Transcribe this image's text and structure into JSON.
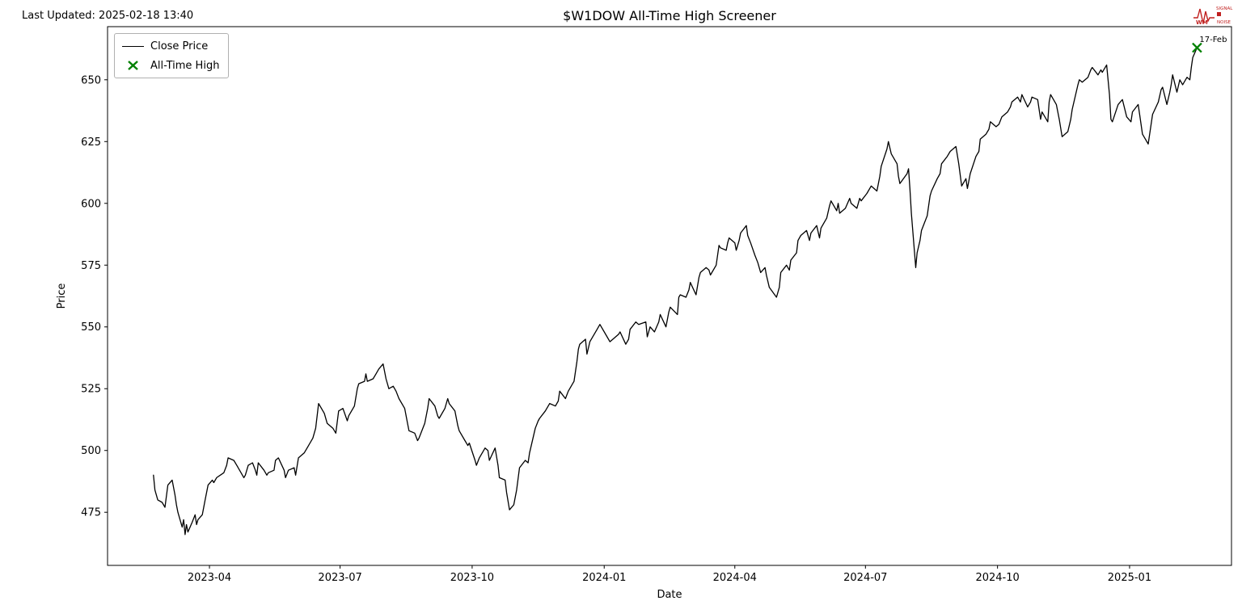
{
  "header": {
    "last_updated": "Last Updated: 2025-02-18 13:40",
    "title": "$W1DOW All-Time High Screener"
  },
  "logo": {
    "letters": "WM",
    "line1": "SIGNAL",
    "line2": "NOISE",
    "color": "#c0201f"
  },
  "legend": {
    "items": [
      {
        "label": "Close Price",
        "type": "line",
        "color": "#000000"
      },
      {
        "label": "All-Time High",
        "type": "x-marker",
        "color": "#008000"
      }
    ]
  },
  "chart_data": {
    "type": "line",
    "title": "$W1DOW All-Time High Screener",
    "xlabel": "Date",
    "ylabel": "Price",
    "series_name": "Close Price",
    "line_color": "#000000",
    "marker_color": "#008000",
    "grid": false,
    "legend_position": "upper left",
    "ylim": [
      453.5,
      671.5
    ],
    "xlim": [
      "2023-01-20",
      "2025-03-13"
    ],
    "yticks": [
      475,
      500,
      525,
      550,
      575,
      600,
      625,
      650
    ],
    "xticks": [
      {
        "label": "2023-04",
        "date": "2023-04-01"
      },
      {
        "label": "2023-07",
        "date": "2023-07-01"
      },
      {
        "label": "2023-10",
        "date": "2023-10-01"
      },
      {
        "label": "2024-01",
        "date": "2024-01-01"
      },
      {
        "label": "2024-04",
        "date": "2024-04-01"
      },
      {
        "label": "2024-07",
        "date": "2024-07-01"
      },
      {
        "label": "2024-10",
        "date": "2024-10-01"
      },
      {
        "label": "2025-01",
        "date": "2025-01-01"
      }
    ],
    "all_time_high": {
      "label": "17-Feb",
      "date": "2025-02-17",
      "value": 663
    },
    "points": [
      [
        "2023-02-21",
        490
      ],
      [
        "2023-02-22",
        484
      ],
      [
        "2023-02-24",
        480
      ],
      [
        "2023-02-27",
        479
      ],
      [
        "2023-03-01",
        477
      ],
      [
        "2023-03-03",
        486
      ],
      [
        "2023-03-06",
        488
      ],
      [
        "2023-03-08",
        482
      ],
      [
        "2023-03-09",
        478
      ],
      [
        "2023-03-10",
        475
      ],
      [
        "2023-03-13",
        469
      ],
      [
        "2023-03-14",
        472
      ],
      [
        "2023-03-15",
        466
      ],
      [
        "2023-03-16",
        470
      ],
      [
        "2023-03-17",
        467
      ],
      [
        "2023-03-20",
        471
      ],
      [
        "2023-03-22",
        474
      ],
      [
        "2023-03-23",
        470
      ],
      [
        "2023-03-24",
        472
      ],
      [
        "2023-03-27",
        474
      ],
      [
        "2023-03-29",
        480
      ],
      [
        "2023-03-31",
        486
      ],
      [
        "2023-04-03",
        488
      ],
      [
        "2023-04-04",
        487
      ],
      [
        "2023-04-06",
        489
      ],
      [
        "2023-04-11",
        491
      ],
      [
        "2023-04-13",
        494
      ],
      [
        "2023-04-14",
        497
      ],
      [
        "2023-04-18",
        496
      ],
      [
        "2023-04-20",
        494
      ],
      [
        "2023-04-25",
        489
      ],
      [
        "2023-04-26",
        490
      ],
      [
        "2023-04-28",
        494
      ],
      [
        "2023-05-01",
        495
      ],
      [
        "2023-05-03",
        492
      ],
      [
        "2023-05-04",
        490
      ],
      [
        "2023-05-05",
        495
      ],
      [
        "2023-05-09",
        492
      ],
      [
        "2023-05-11",
        490
      ],
      [
        "2023-05-12",
        491
      ],
      [
        "2023-05-16",
        492
      ],
      [
        "2023-05-17",
        496
      ],
      [
        "2023-05-19",
        497
      ],
      [
        "2023-05-23",
        492
      ],
      [
        "2023-05-24",
        489
      ],
      [
        "2023-05-26",
        492
      ],
      [
        "2023-05-30",
        493
      ],
      [
        "2023-05-31",
        490
      ],
      [
        "2023-06-02",
        497
      ],
      [
        "2023-06-06",
        499
      ],
      [
        "2023-06-08",
        501
      ],
      [
        "2023-06-12",
        505
      ],
      [
        "2023-06-14",
        509
      ],
      [
        "2023-06-15",
        514
      ],
      [
        "2023-06-16",
        519
      ],
      [
        "2023-06-20",
        515
      ],
      [
        "2023-06-22",
        511
      ],
      [
        "2023-06-26",
        509
      ],
      [
        "2023-06-28",
        507
      ],
      [
        "2023-06-30",
        516
      ],
      [
        "2023-07-03",
        517
      ],
      [
        "2023-07-06",
        512
      ],
      [
        "2023-07-07",
        514
      ],
      [
        "2023-07-11",
        518
      ],
      [
        "2023-07-13",
        525
      ],
      [
        "2023-07-14",
        527
      ],
      [
        "2023-07-18",
        528
      ],
      [
        "2023-07-19",
        531
      ],
      [
        "2023-07-20",
        528
      ],
      [
        "2023-07-24",
        529
      ],
      [
        "2023-07-26",
        531
      ],
      [
        "2023-07-28",
        533
      ],
      [
        "2023-07-31",
        535
      ],
      [
        "2023-08-02",
        529
      ],
      [
        "2023-08-04",
        525
      ],
      [
        "2023-08-07",
        526
      ],
      [
        "2023-08-09",
        524
      ],
      [
        "2023-08-11",
        521
      ],
      [
        "2023-08-15",
        517
      ],
      [
        "2023-08-17",
        511
      ],
      [
        "2023-08-18",
        508
      ],
      [
        "2023-08-22",
        507
      ],
      [
        "2023-08-24",
        504
      ],
      [
        "2023-08-25",
        505
      ],
      [
        "2023-08-29",
        511
      ],
      [
        "2023-08-31",
        517
      ],
      [
        "2023-09-01",
        521
      ],
      [
        "2023-09-05",
        518
      ],
      [
        "2023-09-07",
        514
      ],
      [
        "2023-09-08",
        513
      ],
      [
        "2023-09-12",
        517
      ],
      [
        "2023-09-14",
        521
      ],
      [
        "2023-09-15",
        519
      ],
      [
        "2023-09-19",
        516
      ],
      [
        "2023-09-21",
        510
      ],
      [
        "2023-09-22",
        508
      ],
      [
        "2023-09-26",
        504
      ],
      [
        "2023-09-28",
        502
      ],
      [
        "2023-09-29",
        503
      ],
      [
        "2023-10-03",
        496
      ],
      [
        "2023-10-04",
        494
      ],
      [
        "2023-10-06",
        497
      ],
      [
        "2023-10-10",
        501
      ],
      [
        "2023-10-12",
        500
      ],
      [
        "2023-10-13",
        496
      ],
      [
        "2023-10-17",
        501
      ],
      [
        "2023-10-19",
        494
      ],
      [
        "2023-10-20",
        489
      ],
      [
        "2023-10-24",
        488
      ],
      [
        "2023-10-25",
        483
      ],
      [
        "2023-10-27",
        476
      ],
      [
        "2023-10-30",
        478
      ],
      [
        "2023-11-01",
        484
      ],
      [
        "2023-11-03",
        493
      ],
      [
        "2023-11-07",
        496
      ],
      [
        "2023-11-09",
        495
      ],
      [
        "2023-11-10",
        499
      ],
      [
        "2023-11-14",
        509
      ],
      [
        "2023-11-16",
        512
      ],
      [
        "2023-11-17",
        513
      ],
      [
        "2023-11-21",
        516
      ],
      [
        "2023-11-24",
        519
      ],
      [
        "2023-11-28",
        518
      ],
      [
        "2023-11-30",
        520
      ],
      [
        "2023-12-01",
        524
      ],
      [
        "2023-12-05",
        521
      ],
      [
        "2023-12-07",
        524
      ],
      [
        "2023-12-11",
        528
      ],
      [
        "2023-12-13",
        536
      ],
      [
        "2023-12-14",
        541
      ],
      [
        "2023-12-15",
        543
      ],
      [
        "2023-12-19",
        545
      ],
      [
        "2023-12-20",
        539
      ],
      [
        "2023-12-22",
        544
      ],
      [
        "2023-12-27",
        549
      ],
      [
        "2023-12-29",
        551
      ],
      [
        "2024-01-03",
        546
      ],
      [
        "2024-01-05",
        544
      ],
      [
        "2024-01-09",
        546
      ],
      [
        "2024-01-11",
        547
      ],
      [
        "2024-01-12",
        548
      ],
      [
        "2024-01-16",
        543
      ],
      [
        "2024-01-18",
        545
      ],
      [
        "2024-01-19",
        549
      ],
      [
        "2024-01-23",
        552
      ],
      [
        "2024-01-25",
        551
      ],
      [
        "2024-01-30",
        552
      ],
      [
        "2024-01-31",
        546
      ],
      [
        "2024-02-02",
        550
      ],
      [
        "2024-02-05",
        548
      ],
      [
        "2024-02-08",
        552
      ],
      [
        "2024-02-09",
        555
      ],
      [
        "2024-02-13",
        550
      ],
      [
        "2024-02-15",
        556
      ],
      [
        "2024-02-16",
        558
      ],
      [
        "2024-02-21",
        555
      ],
      [
        "2024-02-22",
        562
      ],
      [
        "2024-02-23",
        563
      ],
      [
        "2024-02-27",
        562
      ],
      [
        "2024-02-29",
        565
      ],
      [
        "2024-03-01",
        568
      ],
      [
        "2024-03-05",
        563
      ],
      [
        "2024-03-07",
        570
      ],
      [
        "2024-03-08",
        572
      ],
      [
        "2024-03-12",
        574
      ],
      [
        "2024-03-14",
        573
      ],
      [
        "2024-03-15",
        571
      ],
      [
        "2024-03-19",
        575
      ],
      [
        "2024-03-21",
        583
      ],
      [
        "2024-03-22",
        582
      ],
      [
        "2024-03-26",
        581
      ],
      [
        "2024-03-27",
        584
      ],
      [
        "2024-03-28",
        586
      ],
      [
        "2024-04-01",
        584
      ],
      [
        "2024-04-02",
        581
      ],
      [
        "2024-04-04",
        585
      ],
      [
        "2024-04-05",
        588
      ],
      [
        "2024-04-09",
        591
      ],
      [
        "2024-04-10",
        587
      ],
      [
        "2024-04-12",
        584
      ],
      [
        "2024-04-15",
        579
      ],
      [
        "2024-04-17",
        576
      ],
      [
        "2024-04-19",
        572
      ],
      [
        "2024-04-22",
        574
      ],
      [
        "2024-04-23",
        571
      ],
      [
        "2024-04-25",
        566
      ],
      [
        "2024-04-30",
        562
      ],
      [
        "2024-05-02",
        566
      ],
      [
        "2024-05-03",
        572
      ],
      [
        "2024-05-07",
        575
      ],
      [
        "2024-05-09",
        573
      ],
      [
        "2024-05-10",
        577
      ],
      [
        "2024-05-14",
        580
      ],
      [
        "2024-05-15",
        585
      ],
      [
        "2024-05-17",
        587
      ],
      [
        "2024-05-21",
        589
      ],
      [
        "2024-05-23",
        585
      ],
      [
        "2024-05-24",
        588
      ],
      [
        "2024-05-28",
        591
      ],
      [
        "2024-05-30",
        586
      ],
      [
        "2024-05-31",
        590
      ],
      [
        "2024-06-04",
        594
      ],
      [
        "2024-06-06",
        599
      ],
      [
        "2024-06-07",
        601
      ],
      [
        "2024-06-11",
        597
      ],
      [
        "2024-06-12",
        600
      ],
      [
        "2024-06-13",
        596
      ],
      [
        "2024-06-17",
        598
      ],
      [
        "2024-06-20",
        602
      ],
      [
        "2024-06-21",
        600
      ],
      [
        "2024-06-25",
        598
      ],
      [
        "2024-06-27",
        602
      ],
      [
        "2024-06-28",
        601
      ],
      [
        "2024-07-02",
        604
      ],
      [
        "2024-07-05",
        607
      ],
      [
        "2024-07-09",
        605
      ],
      [
        "2024-07-11",
        611
      ],
      [
        "2024-07-12",
        615
      ],
      [
        "2024-07-16",
        622
      ],
      [
        "2024-07-17",
        625
      ],
      [
        "2024-07-19",
        620
      ],
      [
        "2024-07-23",
        616
      ],
      [
        "2024-07-24",
        611
      ],
      [
        "2024-07-25",
        608
      ],
      [
        "2024-07-30",
        612
      ],
      [
        "2024-07-31",
        614
      ],
      [
        "2024-08-01",
        606
      ],
      [
        "2024-08-02",
        596
      ],
      [
        "2024-08-05",
        574
      ],
      [
        "2024-08-06",
        580
      ],
      [
        "2024-08-08",
        585
      ],
      [
        "2024-08-09",
        589
      ],
      [
        "2024-08-13",
        595
      ],
      [
        "2024-08-15",
        603
      ],
      [
        "2024-08-16",
        605
      ],
      [
        "2024-08-20",
        610
      ],
      [
        "2024-08-22",
        612
      ],
      [
        "2024-08-23",
        616
      ],
      [
        "2024-08-27",
        619
      ],
      [
        "2024-08-29",
        621
      ],
      [
        "2024-09-02",
        623
      ],
      [
        "2024-09-04",
        616
      ],
      [
        "2024-09-06",
        607
      ],
      [
        "2024-09-09",
        610
      ],
      [
        "2024-09-10",
        606
      ],
      [
        "2024-09-12",
        612
      ],
      [
        "2024-09-16",
        619
      ],
      [
        "2024-09-18",
        621
      ],
      [
        "2024-09-19",
        626
      ],
      [
        "2024-09-23",
        628
      ],
      [
        "2024-09-25",
        630
      ],
      [
        "2024-09-26",
        633
      ],
      [
        "2024-09-30",
        631
      ],
      [
        "2024-10-02",
        632
      ],
      [
        "2024-10-04",
        635
      ],
      [
        "2024-10-08",
        637
      ],
      [
        "2024-10-10",
        639
      ],
      [
        "2024-10-11",
        641
      ],
      [
        "2024-10-15",
        643
      ],
      [
        "2024-10-17",
        641
      ],
      [
        "2024-10-18",
        644
      ],
      [
        "2024-10-22",
        639
      ],
      [
        "2024-10-24",
        641
      ],
      [
        "2024-10-25",
        643
      ],
      [
        "2024-10-29",
        642
      ],
      [
        "2024-10-30",
        638
      ],
      [
        "2024-10-31",
        634
      ],
      [
        "2024-11-01",
        637
      ],
      [
        "2024-11-05",
        633
      ],
      [
        "2024-11-06",
        641
      ],
      [
        "2024-11-07",
        644
      ],
      [
        "2024-11-11",
        640
      ],
      [
        "2024-11-13",
        634
      ],
      [
        "2024-11-15",
        627
      ],
      [
        "2024-11-19",
        629
      ],
      [
        "2024-11-21",
        634
      ],
      [
        "2024-11-22",
        638
      ],
      [
        "2024-11-26",
        648
      ],
      [
        "2024-11-27",
        650
      ],
      [
        "2024-11-29",
        649
      ],
      [
        "2024-12-03",
        651
      ],
      [
        "2024-12-05",
        654
      ],
      [
        "2024-12-06",
        655
      ],
      [
        "2024-12-10",
        652
      ],
      [
        "2024-12-12",
        654
      ],
      [
        "2024-12-13",
        653
      ],
      [
        "2024-12-16",
        656
      ],
      [
        "2024-12-18",
        644
      ],
      [
        "2024-12-19",
        634
      ],
      [
        "2024-12-20",
        633
      ],
      [
        "2024-12-24",
        640
      ],
      [
        "2024-12-27",
        642
      ],
      [
        "2024-12-30",
        635
      ],
      [
        "2025-01-02",
        633
      ],
      [
        "2025-01-03",
        637
      ],
      [
        "2025-01-07",
        640
      ],
      [
        "2025-01-08",
        636
      ],
      [
        "2025-01-10",
        628
      ],
      [
        "2025-01-13",
        625
      ],
      [
        "2025-01-14",
        624
      ],
      [
        "2025-01-16",
        632
      ],
      [
        "2025-01-17",
        636
      ],
      [
        "2025-01-21",
        641
      ],
      [
        "2025-01-23",
        646
      ],
      [
        "2025-01-24",
        647
      ],
      [
        "2025-01-27",
        640
      ],
      [
        "2025-01-29",
        645
      ],
      [
        "2025-01-30",
        648
      ],
      [
        "2025-01-31",
        652
      ],
      [
        "2025-02-03",
        645
      ],
      [
        "2025-02-05",
        650
      ],
      [
        "2025-02-07",
        648
      ],
      [
        "2025-02-10",
        651
      ],
      [
        "2025-02-12",
        650
      ],
      [
        "2025-02-13",
        655
      ],
      [
        "2025-02-14",
        659
      ],
      [
        "2025-02-17",
        663
      ]
    ]
  }
}
